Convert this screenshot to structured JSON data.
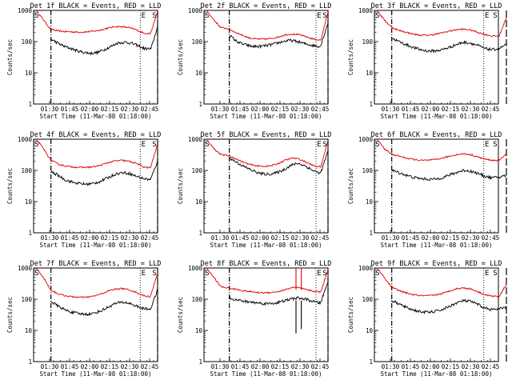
{
  "figure": {
    "background": "#ffffff",
    "colors": {
      "events": "#000000",
      "lld": "#e00000"
    }
  },
  "chart_data": [
    {
      "type": "line",
      "title": "Det 1f BLACK = Events, RED = LLD",
      "xlabel": "Start Time (11-Mar-08 01:18:00)",
      "ylabel": "Counts/sec",
      "y_scale": "log",
      "ylim": [
        1,
        1000
      ],
      "xlim_minutes": [
        0,
        93
      ],
      "x_ticks": [
        "01:30",
        "01:45",
        "02:00",
        "02:15",
        "02:30",
        "02:45"
      ],
      "y_ticks": [
        "1",
        "10",
        "100",
        "1000"
      ],
      "flags": [
        "S",
        "E",
        "S"
      ],
      "markers": [
        {
          "time": "01:31",
          "style": "dash-dot"
        },
        {
          "time": "02:38",
          "style": "dotted"
        },
        {
          "time": "02:51",
          "style": "long-dash"
        }
      ],
      "series": [
        {
          "color": "red",
          "start": "01:20",
          "end": "02:51",
          "values": [
            1000,
            500,
            250,
            220,
            210,
            205,
            200,
            205,
            215,
            235,
            270,
            300,
            300,
            280,
            240,
            190,
            180,
            900
          ]
        },
        {
          "color": "black",
          "start": "01:31",
          "end": "02:51",
          "values": [
            120,
            90,
            70,
            60,
            50,
            45,
            42,
            45,
            55,
            70,
            90,
            95,
            90,
            75,
            60,
            58,
            300
          ]
        }
      ]
    },
    {
      "type": "line",
      "title": "Det 2f BLACK = Events, RED = LLD",
      "xlabel": "Start Time (11-Mar-08 01:18:00)",
      "ylabel": "Counts/sec",
      "y_scale": "log",
      "ylim": [
        1,
        1000
      ],
      "xlim_minutes": [
        0,
        93
      ],
      "x_ticks": [
        "01:30",
        "01:45",
        "02:00",
        "02:15",
        "02:30",
        "02:45"
      ],
      "y_ticks": [
        "1",
        "10",
        "100",
        "1000"
      ],
      "flags": [
        "S",
        "E",
        "S"
      ],
      "markers": [
        {
          "time": "01:37",
          "style": "dash-dot"
        },
        {
          "time": "02:42",
          "style": "dotted"
        },
        {
          "time": "02:51",
          "style": "long-dash"
        }
      ],
      "series": [
        {
          "color": "red",
          "start": "01:20",
          "end": "02:51",
          "values": [
            1000,
            500,
            280,
            260,
            200,
            160,
            130,
            120,
            120,
            125,
            140,
            165,
            175,
            165,
            140,
            120,
            110,
            900
          ]
        },
        {
          "color": "black",
          "start": "01:37",
          "end": "02:51",
          "values": [
            160,
            100,
            80,
            70,
            70,
            75,
            85,
            100,
            110,
            100,
            85,
            75,
            70,
            400
          ]
        }
      ]
    },
    {
      "type": "line",
      "title": "Det 3f BLACK = Events, RED = LLD",
      "xlabel": "Start Time (11-Mar-08 01:18:00)",
      "ylabel": "Counts/sec",
      "y_scale": "log",
      "ylim": [
        1,
        1000
      ],
      "xlim_minutes": [
        0,
        93
      ],
      "x_ticks": [
        "01:30",
        "01:45",
        "02:00",
        "02:15",
        "02:30",
        "02:45"
      ],
      "y_ticks": [
        "1",
        "10",
        "100",
        "1000"
      ],
      "flags": [
        "S",
        "E",
        "S"
      ],
      "markers": [
        {
          "time": "01:31",
          "style": "dash-dot"
        },
        {
          "time": "02:40",
          "style": "dotted"
        },
        {
          "time": "02:57",
          "style": "long-dash"
        }
      ],
      "series": [
        {
          "color": "red",
          "start": "01:20",
          "end": "02:57",
          "values": [
            1000,
            500,
            290,
            230,
            200,
            175,
            160,
            160,
            170,
            190,
            215,
            240,
            250,
            235,
            200,
            170,
            150,
            150,
            600
          ]
        },
        {
          "color": "black",
          "start": "01:31",
          "end": "02:57",
          "values": [
            130,
            100,
            80,
            65,
            55,
            50,
            50,
            55,
            65,
            80,
            95,
            90,
            75,
            60,
            55,
            60,
            80
          ]
        }
      ]
    },
    {
      "type": "line",
      "title": "Det 4f BLACK = Events, RED = LLD",
      "xlabel": "Start Time (11-Mar-08 01:18:00)",
      "ylabel": "Counts/sec",
      "y_scale": "log",
      "ylim": [
        1,
        1000
      ],
      "xlim_minutes": [
        0,
        93
      ],
      "x_ticks": [
        "01:30",
        "01:45",
        "02:00",
        "02:15",
        "02:30",
        "02:45"
      ],
      "y_ticks": [
        "1",
        "10",
        "100",
        "1000"
      ],
      "flags": [
        "S",
        "E",
        "S"
      ],
      "markers": [
        {
          "time": "01:31",
          "style": "dash-dot"
        },
        {
          "time": "02:38",
          "style": "dotted"
        },
        {
          "time": "02:51",
          "style": "long-dash"
        }
      ],
      "series": [
        {
          "color": "red",
          "start": "01:20",
          "end": "02:51",
          "values": [
            1000,
            500,
            220,
            160,
            140,
            130,
            125,
            125,
            130,
            145,
            175,
            200,
            210,
            195,
            170,
            130,
            120,
            700
          ]
        },
        {
          "color": "black",
          "start": "01:31",
          "end": "02:51",
          "values": [
            90,
            70,
            50,
            42,
            38,
            36,
            38,
            45,
            58,
            75,
            85,
            80,
            65,
            55,
            50,
            200
          ]
        }
      ]
    },
    {
      "type": "line",
      "title": "Det 5f BLACK = Events, RED = LLD",
      "xlabel": "Start Time (11-Mar-08 01:18:00)",
      "ylabel": "Counts/sec",
      "y_scale": "log",
      "ylim": [
        1,
        1000
      ],
      "xlim_minutes": [
        0,
        93
      ],
      "x_ticks": [
        "01:30",
        "01:45",
        "02:00",
        "02:15",
        "02:30",
        "02:45"
      ],
      "y_ticks": [
        "1",
        "10",
        "100",
        "1000"
      ],
      "flags": [
        "S",
        "E",
        "S"
      ],
      "markers": [
        {
          "time": "01:37",
          "style": "dash-dot"
        },
        {
          "time": "02:42",
          "style": "dotted"
        },
        {
          "time": "02:51",
          "style": "long-dash"
        }
      ],
      "series": [
        {
          "color": "red",
          "start": "01:20",
          "end": "02:51",
          "values": [
            1000,
            500,
            320,
            300,
            240,
            190,
            155,
            140,
            135,
            140,
            165,
            210,
            250,
            230,
            180,
            140,
            130,
            900
          ]
        },
        {
          "color": "black",
          "start": "01:37",
          "end": "02:51",
          "values": [
            250,
            180,
            130,
            100,
            80,
            75,
            80,
            100,
            140,
            170,
            140,
            100,
            80,
            400
          ]
        }
      ]
    },
    {
      "type": "line",
      "title": "Det 6f BLACK = Events, RED = LLD",
      "xlabel": "Start Time (11-Mar-08 01:18:00)",
      "ylabel": "Counts/sec",
      "y_scale": "log",
      "ylim": [
        1,
        1000
      ],
      "xlim_minutes": [
        0,
        93
      ],
      "x_ticks": [
        "01:30",
        "01:45",
        "02:00",
        "02:15",
        "02:30",
        "02:45"
      ],
      "y_ticks": [
        "1",
        "10",
        "100",
        "1000"
      ],
      "flags": [
        "S",
        "E",
        "S"
      ],
      "markers": [
        {
          "time": "01:31",
          "style": "dash-dot"
        },
        {
          "time": "02:40",
          "style": "dotted"
        },
        {
          "time": "02:57",
          "style": "long-dash"
        }
      ],
      "series": [
        {
          "color": "red",
          "start": "01:20",
          "end": "02:57",
          "values": [
            1000,
            500,
            330,
            290,
            250,
            225,
            210,
            210,
            220,
            245,
            280,
            320,
            340,
            320,
            270,
            230,
            210,
            210,
            350
          ]
        },
        {
          "color": "black",
          "start": "01:31",
          "end": "02:57",
          "values": [
            100,
            85,
            70,
            60,
            55,
            52,
            52,
            58,
            70,
            85,
            100,
            95,
            80,
            65,
            58,
            60,
            70
          ]
        }
      ]
    },
    {
      "type": "line",
      "title": "Det 7f BLACK = Events, RED = LLD",
      "xlabel": "Start Time (11-Mar-08 01:18:00)",
      "ylabel": "Counts/sec",
      "y_scale": "log",
      "ylim": [
        1,
        1000
      ],
      "xlim_minutes": [
        0,
        93
      ],
      "x_ticks": [
        "01:30",
        "01:45",
        "02:00",
        "02:15",
        "02:30",
        "02:45"
      ],
      "y_ticks": [
        "1",
        "10",
        "100",
        "1000"
      ],
      "flags": [
        "S",
        "E",
        "S"
      ],
      "markers": [
        {
          "time": "01:31",
          "style": "dash-dot"
        },
        {
          "time": "02:38",
          "style": "dotted"
        },
        {
          "time": "02:51",
          "style": "long-dash"
        }
      ],
      "series": [
        {
          "color": "red",
          "start": "01:20",
          "end": "02:51",
          "values": [
            1000,
            500,
            200,
            150,
            130,
            120,
            115,
            115,
            125,
            145,
            180,
            210,
            220,
            200,
            165,
            130,
            120,
            700
          ]
        },
        {
          "color": "black",
          "start": "01:31",
          "end": "02:51",
          "values": [
            85,
            60,
            45,
            38,
            34,
            33,
            35,
            42,
            55,
            72,
            80,
            75,
            60,
            50,
            48,
            200
          ]
        }
      ]
    },
    {
      "type": "line",
      "title": "Det 8f BLACK = Events, RED = LLD",
      "xlabel": "Start Time (11-Mar-08 01:18:00)",
      "ylabel": "Counts/sec",
      "y_scale": "log",
      "ylim": [
        1,
        1000
      ],
      "xlim_minutes": [
        0,
        93
      ],
      "x_ticks": [
        "01:30",
        "01:45",
        "02:00",
        "02:15",
        "02:30",
        "02:45"
      ],
      "y_ticks": [
        "1",
        "10",
        "100",
        "1000"
      ],
      "flags": [
        "S",
        "E",
        "S"
      ],
      "markers": [
        {
          "time": "01:37",
          "style": "dash-dot"
        },
        {
          "time": "02:42",
          "style": "dotted"
        },
        {
          "time": "02:51",
          "style": "long-dash"
        }
      ],
      "series": [
        {
          "color": "red",
          "start": "01:20",
          "end": "02:51",
          "values": [
            1000,
            500,
            250,
            230,
            210,
            190,
            175,
            165,
            160,
            165,
            175,
            200,
            240,
            230,
            200,
            180,
            170,
            900
          ]
        },
        {
          "color": "black",
          "start": "01:37",
          "end": "02:51",
          "values": [
            110,
            95,
            85,
            80,
            75,
            72,
            75,
            85,
            100,
            110,
            100,
            85,
            75,
            350
          ]
        }
      ],
      "spikes": [
        {
          "time": "02:27",
          "series": "red",
          "value": 1000
        },
        {
          "time": "02:31",
          "series": "red",
          "value": 1000
        },
        {
          "time": "02:27",
          "series": "black",
          "value": 8
        },
        {
          "time": "02:31",
          "series": "black",
          "value": 11
        }
      ]
    },
    {
      "type": "line",
      "title": "Det 9f BLACK = Events, RED = LLD",
      "xlabel": "Start Time (11-Mar-08 01:18:00)",
      "ylabel": "Counts/sec",
      "y_scale": "log",
      "ylim": [
        1,
        1000
      ],
      "xlim_minutes": [
        0,
        93
      ],
      "x_ticks": [
        "01:30",
        "01:45",
        "02:00",
        "02:15",
        "02:30",
        "02:45"
      ],
      "y_ticks": [
        "1",
        "10",
        "100",
        "1000"
      ],
      "flags": [
        "S",
        "E",
        "S"
      ],
      "markers": [
        {
          "time": "01:31",
          "style": "dash-dot"
        },
        {
          "time": "02:40",
          "style": "dotted"
        },
        {
          "time": "02:57",
          "style": "long-dash"
        }
      ],
      "series": [
        {
          "color": "red",
          "start": "01:20",
          "end": "02:57",
          "values": [
            1000,
            500,
            250,
            190,
            160,
            140,
            130,
            128,
            135,
            150,
            180,
            215,
            230,
            215,
            175,
            140,
            125,
            125,
            300
          ]
        },
        {
          "color": "black",
          "start": "01:31",
          "end": "02:57",
          "values": [
            90,
            70,
            55,
            45,
            40,
            38,
            40,
            46,
            58,
            75,
            90,
            85,
            68,
            52,
            46,
            48,
            55
          ]
        }
      ]
    }
  ]
}
